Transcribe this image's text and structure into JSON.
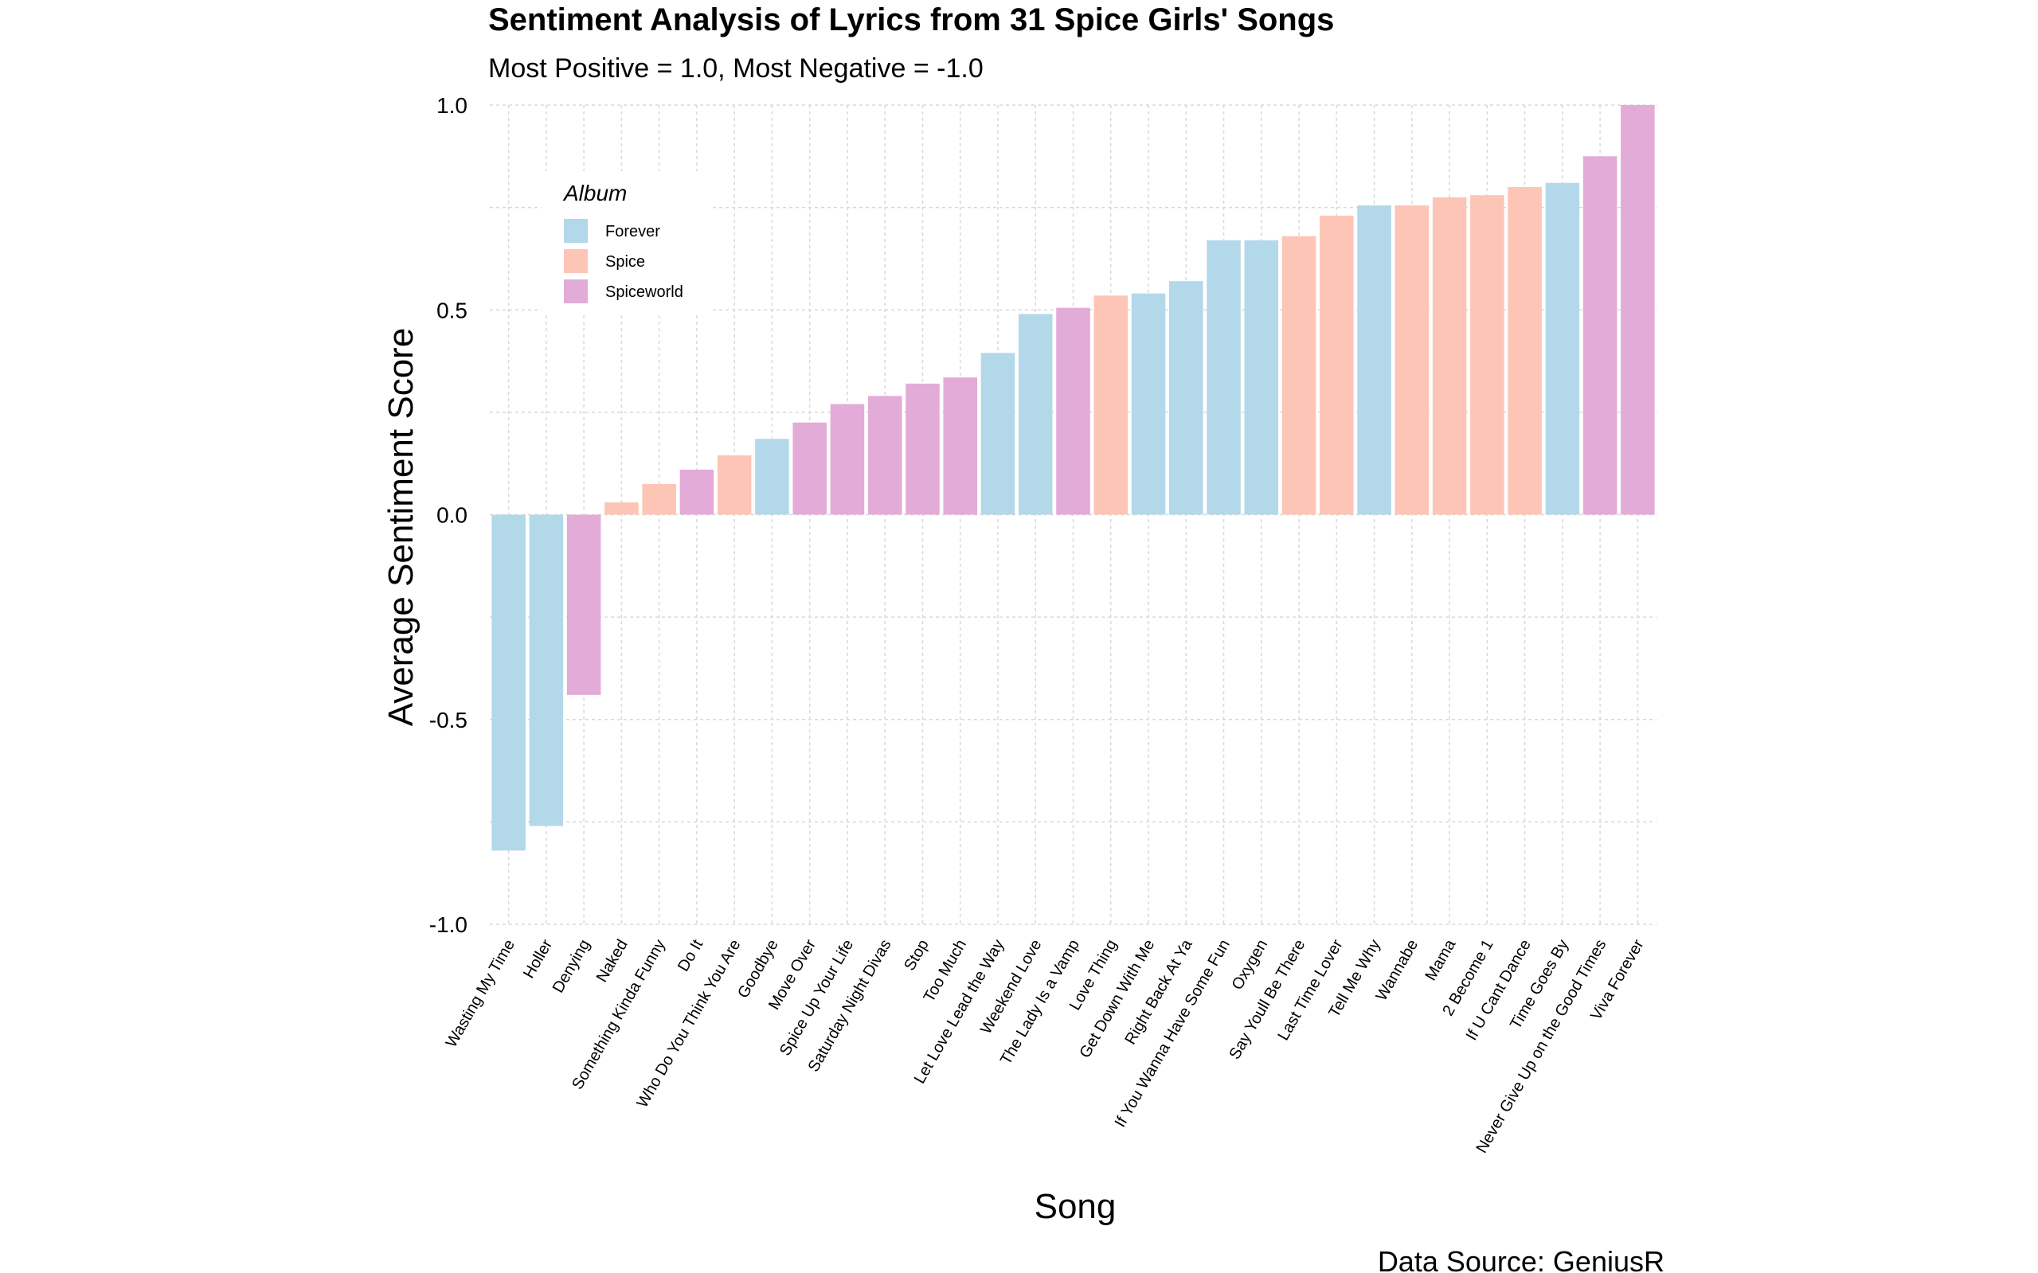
{
  "chart_data": {
    "type": "bar",
    "title": "Sentiment Analysis of Lyrics from 31 Spice Girls' Songs",
    "subtitle": "Most Positive = 1.0, Most Negative = -1.0",
    "xlabel": "Song",
    "ylabel": "Average Sentiment Score",
    "caption": "Data Source: GeniusR",
    "ylim": [
      -1.0,
      1.0
    ],
    "yticks": [
      "1.0",
      "0.5",
      "0.0",
      "-0.5",
      "-1.0"
    ],
    "grid": true,
    "legend": {
      "title": "Album",
      "position": "top-left",
      "entries": [
        {
          "name": "Forever",
          "color": "#b3d8ea"
        },
        {
          "name": "Spice",
          "color": "#fdc5b6"
        },
        {
          "name": "Spiceworld",
          "color": "#e3abd7"
        }
      ]
    },
    "bars": [
      {
        "song": "Wasting My Time",
        "album": "Forever",
        "value": -0.82
      },
      {
        "song": "Holler",
        "album": "Forever",
        "value": -0.76
      },
      {
        "song": "Denying",
        "album": "Spiceworld",
        "value": -0.44
      },
      {
        "song": "Naked",
        "album": "Spice",
        "value": 0.03
      },
      {
        "song": "Something Kinda Funny",
        "album": "Spice",
        "value": 0.075
      },
      {
        "song": "Do It",
        "album": "Spiceworld",
        "value": 0.11
      },
      {
        "song": "Who Do You Think You Are",
        "album": "Spice",
        "value": 0.145
      },
      {
        "song": "Goodbye",
        "album": "Forever",
        "value": 0.185
      },
      {
        "song": "Move Over",
        "album": "Spiceworld",
        "value": 0.225
      },
      {
        "song": "Spice Up Your Life",
        "album": "Spiceworld",
        "value": 0.27
      },
      {
        "song": "Saturday Night Divas",
        "album": "Spiceworld",
        "value": 0.29
      },
      {
        "song": "Stop",
        "album": "Spiceworld",
        "value": 0.32
      },
      {
        "song": "Too Much",
        "album": "Spiceworld",
        "value": 0.335
      },
      {
        "song": "Let Love Lead the Way",
        "album": "Forever",
        "value": 0.395
      },
      {
        "song": "Weekend Love",
        "album": "Forever",
        "value": 0.49
      },
      {
        "song": "The Lady Is a Vamp",
        "album": "Spiceworld",
        "value": 0.505
      },
      {
        "song": "Love Thing",
        "album": "Spice",
        "value": 0.535
      },
      {
        "song": "Get Down With Me",
        "album": "Forever",
        "value": 0.54
      },
      {
        "song": "Right Back At Ya",
        "album": "Forever",
        "value": 0.57
      },
      {
        "song": "If You Wanna Have Some Fun",
        "album": "Forever",
        "value": 0.67
      },
      {
        "song": "Oxygen",
        "album": "Forever",
        "value": 0.67
      },
      {
        "song": "Say Youll Be There",
        "album": "Spice",
        "value": 0.68
      },
      {
        "song": "Last Time Lover",
        "album": "Spice",
        "value": 0.73
      },
      {
        "song": "Tell Me Why",
        "album": "Forever",
        "value": 0.755
      },
      {
        "song": "Wannabe",
        "album": "Spice",
        "value": 0.755
      },
      {
        "song": "Mama",
        "album": "Spice",
        "value": 0.775
      },
      {
        "song": "2 Become 1",
        "album": "Spice",
        "value": 0.78
      },
      {
        "song": "If U Cant Dance",
        "album": "Spice",
        "value": 0.8
      },
      {
        "song": "Time Goes By",
        "album": "Forever",
        "value": 0.81
      },
      {
        "song": "Never Give Up on the Good Times",
        "album": "Spiceworld",
        "value": 0.875
      },
      {
        "song": "Viva Forever",
        "album": "Spiceworld",
        "value": 1.0
      }
    ]
  }
}
